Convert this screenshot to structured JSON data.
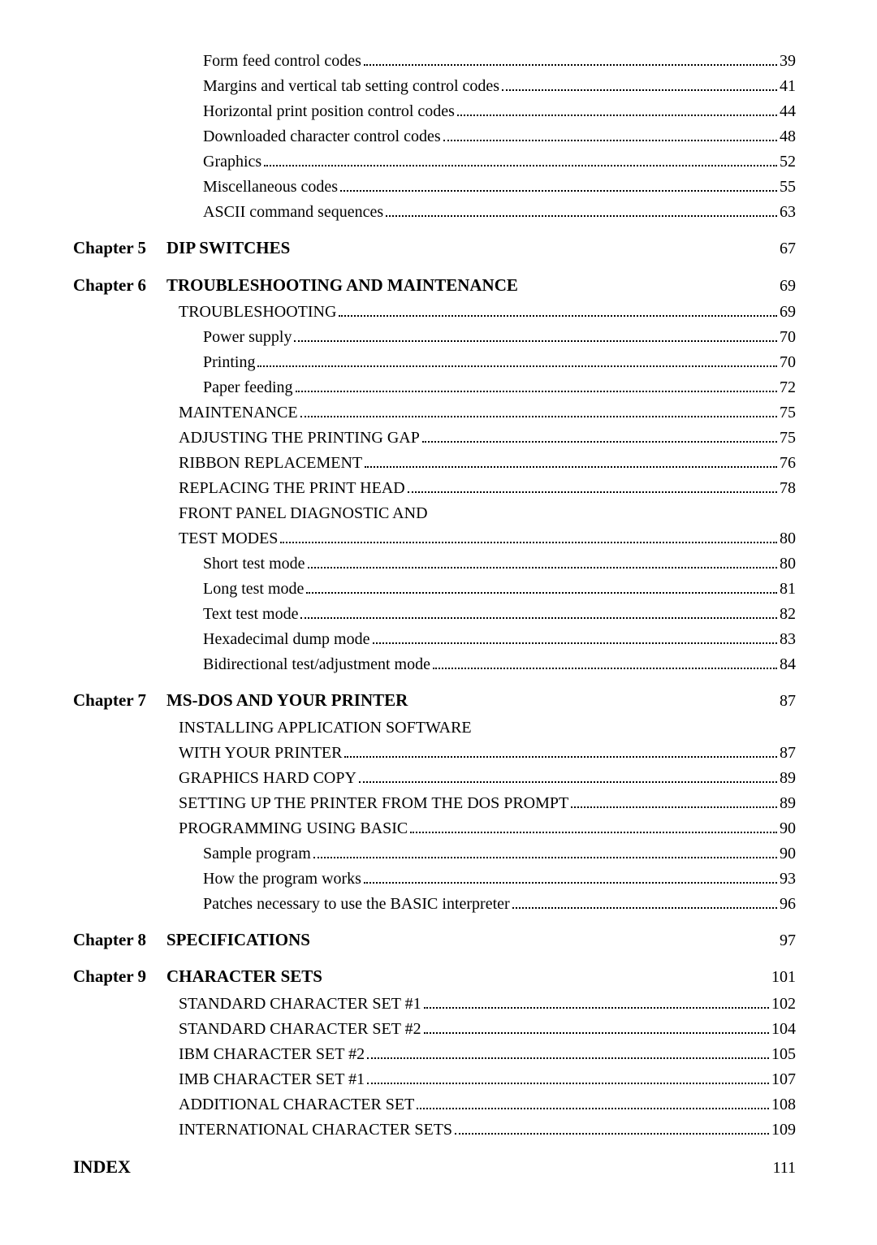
{
  "toc": {
    "pre_entries": [
      {
        "text": "Form feed control codes",
        "page": "39",
        "indent": 2
      },
      {
        "text": "Margins and vertical tab setting control codes",
        "page": "41",
        "indent": 2
      },
      {
        "text": "Horizontal print position control codes",
        "page": "44",
        "indent": 2
      },
      {
        "text": "Downloaded character control codes",
        "page": "48",
        "indent": 2
      },
      {
        "text": "Graphics",
        "page": "52",
        "indent": 2
      },
      {
        "text": "Miscellaneous codes",
        "page": "55",
        "indent": 2
      },
      {
        "text": "ASCII command sequences",
        "page": "63",
        "indent": 2
      }
    ],
    "chapters": [
      {
        "label": "Chapter 5",
        "title": "DIP SWITCHES",
        "page": "67",
        "entries": []
      },
      {
        "label": "Chapter 6",
        "title": "TROUBLESHOOTING AND MAINTENANCE",
        "page": "69",
        "entries": [
          {
            "text": "TROUBLESHOOTING",
            "page": "69",
            "indent": 1
          },
          {
            "text": "Power supply",
            "page": "70",
            "indent": 2
          },
          {
            "text": "Printing",
            "page": "70",
            "indent": 2
          },
          {
            "text": "Paper feeding",
            "page": "72",
            "indent": 2
          },
          {
            "text": "MAINTENANCE",
            "page": "75",
            "indent": 1
          },
          {
            "text": "ADJUSTING THE PRINTING GAP",
            "page": "75",
            "indent": 1
          },
          {
            "text": "RIBBON REPLACEMENT",
            "page": "76",
            "indent": 1
          },
          {
            "text": "REPLACING THE PRINT HEAD",
            "page": "78",
            "indent": 1
          },
          {
            "text": "FRONT PANEL DIAGNOSTIC AND",
            "nowrap": true,
            "indent": 1
          },
          {
            "text": "TEST MODES",
            "page": "80",
            "indent": 1
          },
          {
            "text": "Short test mode",
            "page": "80",
            "indent": 2
          },
          {
            "text": "Long test mode",
            "page": "81",
            "indent": 2
          },
          {
            "text": "Text test mode",
            "page": "82",
            "indent": 2
          },
          {
            "text": "Hexadecimal dump mode",
            "page": "83",
            "indent": 2
          },
          {
            "text": "Bidirectional test/adjustment mode",
            "page": "84",
            "indent": 2
          }
        ]
      },
      {
        "label": "Chapter 7",
        "title": "MS-DOS AND YOUR PRINTER",
        "page": "87",
        "entries": [
          {
            "text": "INSTALLING APPLICATION SOFTWARE",
            "nowrap": true,
            "indent": 1
          },
          {
            "text": "WITH YOUR PRINTER",
            "page": "87",
            "indent": 1
          },
          {
            "text": "GRAPHICS HARD COPY",
            "page": "89",
            "indent": 1
          },
          {
            "text": "SETTING UP THE PRINTER FROM THE DOS PROMPT",
            "page": "89",
            "indent": 1
          },
          {
            "text": "PROGRAMMING USING BASIC",
            "page": "90",
            "indent": 1
          },
          {
            "text": "Sample program",
            "page": "90",
            "indent": 2
          },
          {
            "text": "How the program works",
            "page": "93",
            "indent": 2
          },
          {
            "text": "Patches necessary to use the BASIC interpreter",
            "page": "96",
            "indent": 2
          }
        ]
      },
      {
        "label": "Chapter 8",
        "title": "SPECIFICATIONS",
        "page": "97",
        "entries": []
      },
      {
        "label": "Chapter 9",
        "title": "CHARACTER SETS",
        "page": "101",
        "entries": [
          {
            "text": "STANDARD CHARACTER SET #1",
            "page": "102",
            "indent": 1
          },
          {
            "text": "STANDARD CHARACTER SET #2",
            "page": "104",
            "indent": 1
          },
          {
            "text": "IBM CHARACTER SET #2",
            "page": "105",
            "indent": 1
          },
          {
            "text": "IMB CHARACTER SET #1",
            "page": "107",
            "indent": 1
          },
          {
            "text": "ADDITIONAL CHARACTER SET",
            "page": "108",
            "indent": 1
          },
          {
            "text": "INTERNATIONAL CHARACTER SETS",
            "page": "109",
            "indent": 1
          }
        ]
      }
    ],
    "index": {
      "label": "INDEX",
      "page": "111"
    }
  }
}
